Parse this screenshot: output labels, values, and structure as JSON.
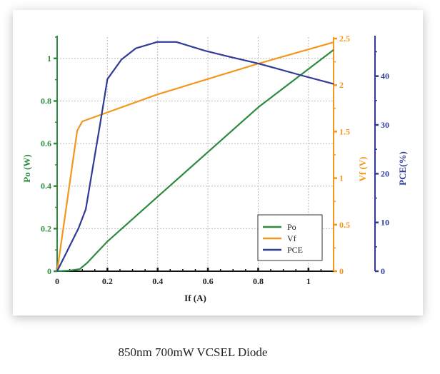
{
  "caption": "850nm 700mW VCSEL Diode",
  "colors": {
    "Po": "#2e8b3e",
    "Vf": "#f2961e",
    "PCE": "#2f3b96",
    "grid": "#bbbbbb",
    "axis_x": "#111111"
  },
  "chart_data": {
    "type": "line",
    "xlabel": "If (A)",
    "xlim": [
      0,
      1.1
    ],
    "xticks": [
      0,
      0.2,
      0.4,
      0.6,
      0.8,
      1
    ],
    "xtick_labels": [
      "0",
      "0.2",
      "0.4",
      "0.6",
      "0.8",
      "1"
    ],
    "grid": true,
    "legend_position": "bottom-right",
    "axes": [
      {
        "id": "Po",
        "label": "Po (W)",
        "side": "left",
        "lim": [
          0,
          1.1
        ],
        "ticks": [
          0,
          0.2,
          0.4,
          0.6,
          0.8,
          1
        ],
        "tick_labels": [
          "0",
          "0.2",
          "0.4",
          "0.6",
          "0.8",
          "1"
        ]
      },
      {
        "id": "Vf",
        "label": "Vf (V)",
        "side": "right",
        "lim": [
          0,
          2.5
        ],
        "ticks": [
          0,
          0.5,
          1,
          1.5,
          2,
          2.5
        ],
        "tick_labels": [
          "0",
          "0.5",
          "1",
          "1.5",
          "2",
          "2.5"
        ]
      },
      {
        "id": "PCE",
        "label": "PCE(%)",
        "side": "right-outer",
        "lim": [
          0,
          48
        ],
        "ticks": [
          0,
          10,
          20,
          30,
          40
        ],
        "tick_labels": [
          "0",
          "10",
          "20",
          "30",
          "40"
        ]
      }
    ],
    "series": [
      {
        "name": "Po",
        "axis": "Po",
        "x": [
          0,
          0.05,
          0.09,
          0.12,
          0.2,
          0.4,
          0.8,
          1.1
        ],
        "y": [
          0,
          0.003,
          0.01,
          0.04,
          0.14,
          0.35,
          0.77,
          1.04
        ]
      },
      {
        "name": "Vf",
        "axis": "Vf",
        "x": [
          0,
          0.08,
          0.1,
          0.4,
          0.8,
          1.1
        ],
        "y": [
          0,
          1.51,
          1.61,
          1.9,
          2.23,
          2.46
        ]
      },
      {
        "name": "PCE",
        "axis": "PCE",
        "x": [
          0,
          0.085,
          0.114,
          0.152,
          0.171,
          0.2,
          0.256,
          0.313,
          0.398,
          0.474,
          0.588,
          0.683,
          0.8,
          0.976,
          1.1
        ],
        "y": [
          0,
          8.8,
          12.7,
          24.4,
          30.2,
          39.4,
          43.4,
          45.7,
          47.0,
          47.0,
          45.2,
          44.0,
          42.6,
          40.1,
          38.4
        ]
      }
    ]
  }
}
